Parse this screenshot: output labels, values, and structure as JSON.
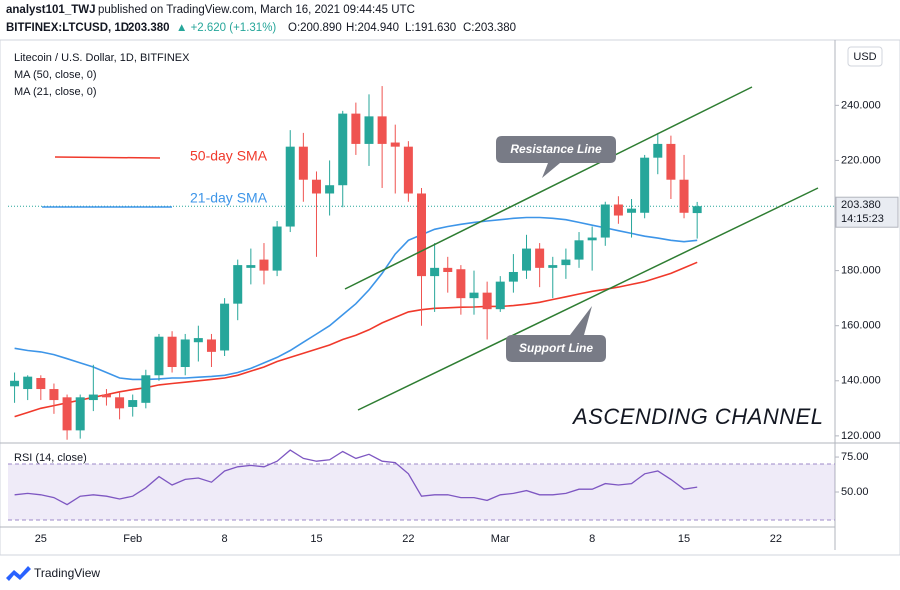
{
  "header": {
    "publisher": "analyst101_TWJ",
    "published": "published on TradingView.com, March 16, 2021 09:44:45 UTC",
    "symbol": "BITFINEX:LTCUSD, 1D",
    "price": "203.380",
    "change": "▲ +2.620 (+1.31%)",
    "ohlc": [
      "O:200.890",
      "H:204.940",
      "L:191.630",
      "C:203.380"
    ]
  },
  "chart_data": [
    {
      "type": "candlestick",
      "title": "Litecoin / U.S. Dollar, 1D, BITFINEX",
      "currency": "USD",
      "categories": [
        null,
        null,
        "25",
        null,
        null,
        null,
        null,
        null,
        null,
        "Feb",
        null,
        null,
        null,
        null,
        null,
        null,
        "8",
        null,
        null,
        null,
        null,
        null,
        null,
        "15",
        null,
        null,
        null,
        null,
        null,
        null,
        "22",
        null,
        null,
        null,
        null,
        null,
        null,
        "Mar",
        null,
        null,
        null,
        null,
        null,
        null,
        "8",
        null,
        null,
        null,
        null,
        null,
        null,
        "15",
        null,
        null,
        null,
        null,
        null,
        null,
        "22",
        null,
        null,
        null,
        null
      ],
      "open": [
        138,
        137,
        141,
        137,
        134,
        122,
        133,
        135,
        134,
        130.5,
        132,
        142,
        156,
        145,
        154,
        155,
        151,
        168,
        181,
        184,
        180,
        196,
        225,
        213,
        208,
        211,
        237,
        226,
        236,
        226.5,
        225,
        208,
        178,
        181,
        180.5,
        170,
        172,
        166,
        176,
        180,
        188,
        181,
        182,
        184,
        191,
        192,
        204,
        201,
        201,
        221,
        226,
        213,
        200.89,
        null,
        null,
        null,
        null,
        null,
        null,
        null,
        null,
        null,
        null
      ],
      "high": [
        143,
        142,
        142,
        139,
        135,
        135,
        145.8,
        137,
        136,
        135,
        144,
        157,
        158,
        157,
        160,
        157,
        170,
        184,
        188,
        190,
        198,
        231,
        230,
        216,
        220,
        238,
        241,
        244,
        247,
        233,
        227,
        210,
        190,
        185,
        182,
        180,
        176,
        178,
        186,
        193,
        190,
        185,
        188,
        194,
        196,
        205,
        207,
        206,
        222,
        230,
        229,
        222,
        204.94,
        null,
        null,
        null,
        null,
        null,
        null,
        null,
        null,
        null,
        null
      ],
      "low": [
        132,
        133,
        133,
        128,
        118.6,
        119,
        129,
        131,
        126,
        127,
        130,
        140,
        143,
        142,
        147,
        145,
        149,
        162,
        175,
        175,
        178,
        194,
        205,
        185,
        200,
        203,
        222,
        218,
        210,
        208,
        205,
        160,
        165,
        172,
        164,
        164,
        155,
        165,
        172,
        177,
        174,
        170,
        177,
        181,
        180,
        189,
        197,
        192,
        199,
        215,
        206,
        199,
        191.63,
        null,
        null,
        null,
        null,
        null,
        null,
        null,
        null,
        null,
        null
      ],
      "close": [
        140,
        141.5,
        137,
        133,
        122,
        134,
        135,
        134,
        130,
        133,
        142,
        156,
        145,
        155,
        155.5,
        150.5,
        168,
        182,
        182,
        180,
        196,
        225,
        213,
        208,
        211,
        237,
        226,
        236,
        226,
        225,
        208,
        178,
        181,
        179.5,
        170,
        172,
        166,
        176,
        179.5,
        188,
        181,
        182,
        184,
        191,
        192,
        204,
        200,
        202.5,
        221,
        226,
        213,
        201,
        203.38,
        null,
        null,
        null,
        null,
        null,
        null,
        null,
        null,
        null,
        null
      ],
      "up_color": "#26a69a",
      "down_color": "#ef5350",
      "series": [
        {
          "name": "MA (50, close, 0)",
          "color": "#f0392b",
          "values": [
            127,
            128.5,
            130,
            131,
            132,
            133,
            134,
            135,
            136,
            136.8,
            137.5,
            138.5,
            139,
            139.5,
            140,
            140.5,
            141,
            142,
            143.5,
            145,
            147,
            148.5,
            150,
            151.5,
            153,
            155,
            156.5,
            158.5,
            161,
            163,
            165,
            165.8,
            166.3,
            166.5,
            166.7,
            166.8,
            167,
            167,
            167.3,
            167.8,
            168.5,
            169.5,
            170.5,
            171.5,
            172.5,
            173.2,
            174,
            175,
            176,
            177.5,
            179,
            181,
            183,
            null,
            null,
            null,
            null,
            null,
            null,
            null,
            null,
            null,
            null
          ]
        },
        {
          "name": "MA (21, close, 0)",
          "color": "#3d95e8",
          "values": [
            151.8,
            151,
            150.5,
            149.5,
            148,
            146.5,
            145,
            143,
            141,
            140.5,
            140.5,
            140.7,
            141,
            141,
            141.3,
            141.6,
            142,
            143,
            144.5,
            146.5,
            148.5,
            151,
            154,
            157,
            160,
            164,
            168,
            173,
            179,
            186,
            191,
            193,
            195,
            196,
            196.8,
            197.5,
            198,
            198.5,
            199,
            199.3,
            199.3,
            199,
            198.5,
            197.5,
            196.5,
            195.5,
            194.5,
            193.5,
            192.5,
            191.8,
            191,
            190.5,
            191,
            null,
            null,
            null,
            null,
            null,
            null,
            null,
            null,
            null,
            null
          ]
        }
      ],
      "ylim": [
        118.5,
        263
      ],
      "yticks": [
        {
          "value": 120,
          "label": "120.000"
        },
        {
          "value": 140,
          "label": "140.000"
        },
        {
          "value": 160,
          "label": "160.000"
        },
        {
          "value": 180,
          "label": "180.000"
        },
        {
          "value": 200,
          "label": "200.000"
        },
        {
          "value": 220,
          "label": "220.000"
        },
        {
          "value": 240,
          "label": "240.000"
        }
      ],
      "last_price": {
        "value": 203.38,
        "label": "203.380"
      },
      "countdown": "14:15:23",
      "annotations": {
        "sma50": "50-day SMA",
        "sma21": "21-day SMA",
        "resistance": "Resistance Line",
        "support": "Support Line",
        "channel": "ASCENDING CHANNEL"
      }
    },
    {
      "type": "line",
      "title": "RSI (14, close)",
      "series": [
        {
          "name": "RSI",
          "color": "#7e57c2",
          "values": [
            48,
            49,
            48,
            46,
            41,
            47,
            48,
            47,
            45,
            47,
            53,
            61,
            55,
            59,
            60,
            57,
            65,
            68,
            69,
            68,
            72,
            80,
            74,
            72,
            73,
            79,
            74,
            77,
            72,
            71,
            63,
            47,
            48,
            48,
            46,
            46,
            44,
            48,
            49,
            51,
            48,
            48,
            49,
            52,
            52,
            56,
            55,
            56,
            63,
            65,
            59,
            52,
            53.5,
            null,
            null,
            null,
            null,
            null,
            null,
            null,
            null,
            null,
            null
          ]
        }
      ],
      "bands": [
        30,
        70
      ],
      "ylim": [
        25.7,
        82.9
      ],
      "yticks": [
        {
          "value": 50,
          "label": "50.00"
        },
        {
          "value": 75,
          "label": "75.00"
        }
      ]
    }
  ],
  "footer": {
    "brand": "TradingView"
  }
}
